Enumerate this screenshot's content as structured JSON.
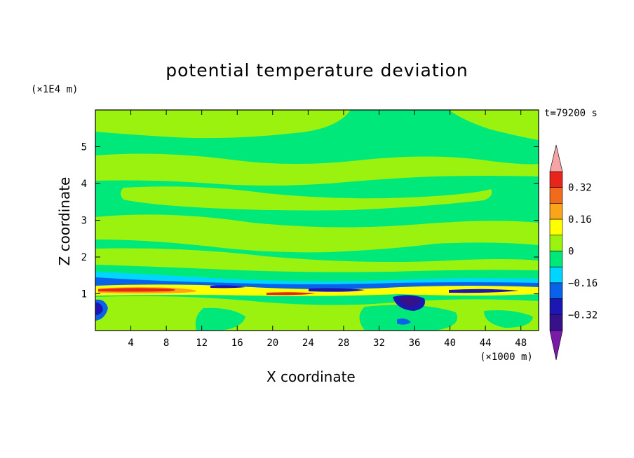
{
  "chart_data": {
    "type": "heatmap",
    "title": "potential temperature deviation",
    "xlabel": "X coordinate",
    "ylabel": "Z coordinate",
    "x_unit": "(×1000 m)",
    "y_unit": "(×1E4 m)",
    "time_label": "t=79200 s",
    "xlim": [
      0,
      50
    ],
    "ylim": [
      0,
      6
    ],
    "x_ticks": [
      4,
      8,
      12,
      16,
      20,
      24,
      28,
      32,
      36,
      40,
      44,
      48
    ],
    "y_ticks": [
      1,
      2,
      3,
      4,
      5
    ],
    "x_tick_labels": [
      "4",
      "8",
      "12",
      "16",
      "20",
      "24",
      "28",
      "32",
      "36",
      "40",
      "44",
      "48"
    ],
    "y_tick_labels": [
      "1",
      "2",
      "3",
      "4",
      "5"
    ],
    "colorbar": {
      "levels": [
        -0.4,
        -0.32,
        -0.24,
        -0.16,
        -0.08,
        0,
        0.08,
        0.16,
        0.24,
        0.32,
        0.4
      ],
      "labels": [
        "0.32",
        "0.16",
        "0",
        "−0.16",
        "−0.32"
      ],
      "label_values": [
        0.32,
        0.16,
        0,
        -0.16,
        -0.32
      ],
      "colors_top_to_bottom": [
        "#e8251b",
        "#f26a1b",
        "#f9a41a",
        "#ffff00",
        "#9bf20f",
        "#00e87a",
        "#00d5ff",
        "#0a62e8",
        "#1d16b2",
        "#36128a"
      ],
      "over_color": "#f6a3a3",
      "under_color": "#7a1aa8"
    },
    "grid": false
  }
}
